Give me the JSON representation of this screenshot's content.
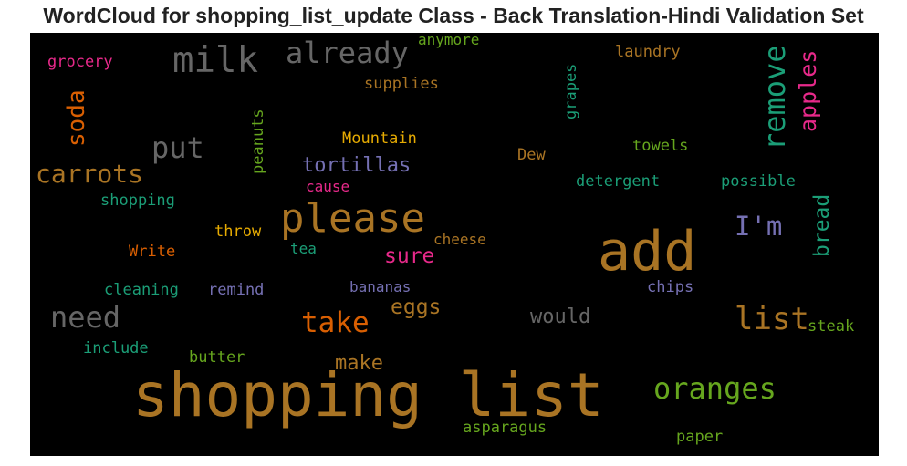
{
  "title": "WordCloud for shopping_list_update Class - Back Translation-Hindi Validation Set",
  "words": [
    {
      "text": "shopping list",
      "color": "#a97424"
    },
    {
      "text": "add",
      "color": "#a97424"
    },
    {
      "text": "please",
      "color": "#a97424"
    },
    {
      "text": "milk",
      "color": "#666666"
    },
    {
      "text": "already",
      "color": "#666666"
    },
    {
      "text": "oranges",
      "color": "#66a61e"
    },
    {
      "text": "list",
      "color": "#a97424"
    },
    {
      "text": "take",
      "color": "#d95f02"
    },
    {
      "text": "need",
      "color": "#666666"
    },
    {
      "text": "put",
      "color": "#666666"
    },
    {
      "text": "carrots",
      "color": "#a97424"
    },
    {
      "text": "remove",
      "color": "#1b9e77"
    },
    {
      "text": "apples",
      "color": "#e7298a"
    },
    {
      "text": "soda",
      "color": "#d95f02"
    },
    {
      "text": "I'm",
      "color": "#7570b3"
    },
    {
      "text": "tortillas",
      "color": "#7570b3"
    },
    {
      "text": "bread",
      "color": "#1b9e77"
    },
    {
      "text": "sure",
      "color": "#e7298a"
    },
    {
      "text": "eggs",
      "color": "#a97424"
    },
    {
      "text": "would",
      "color": "#666666"
    },
    {
      "text": "make",
      "color": "#a97424"
    },
    {
      "text": "grocery",
      "color": "#e7298a"
    },
    {
      "text": "anymore",
      "color": "#66a61e"
    },
    {
      "text": "laundry",
      "color": "#a97424"
    },
    {
      "text": "supplies",
      "color": "#a97424"
    },
    {
      "text": "grapes",
      "color": "#1b9e77"
    },
    {
      "text": "peanuts",
      "color": "#66a61e"
    },
    {
      "text": "Mountain",
      "color": "#e6ab02"
    },
    {
      "text": "Dew",
      "color": "#a97424"
    },
    {
      "text": "towels",
      "color": "#66a61e"
    },
    {
      "text": "detergent",
      "color": "#1b9e77"
    },
    {
      "text": "possible",
      "color": "#1b9e77"
    },
    {
      "text": "cause",
      "color": "#e7298a"
    },
    {
      "text": "shopping",
      "color": "#1b9e77"
    },
    {
      "text": "throw",
      "color": "#e6ab02"
    },
    {
      "text": "cheese",
      "color": "#a97424"
    },
    {
      "text": "tea",
      "color": "#1b9e77"
    },
    {
      "text": "Write",
      "color": "#d95f02"
    },
    {
      "text": "cleaning",
      "color": "#1b9e77"
    },
    {
      "text": "remind",
      "color": "#7570b3"
    },
    {
      "text": "bananas",
      "color": "#7570b3"
    },
    {
      "text": "chips",
      "color": "#7570b3"
    },
    {
      "text": "steak",
      "color": "#66a61e"
    },
    {
      "text": "include",
      "color": "#1b9e77"
    },
    {
      "text": "butter",
      "color": "#66a61e"
    },
    {
      "text": "asparagus",
      "color": "#66a61e"
    },
    {
      "text": "paper",
      "color": "#66a61e"
    }
  ]
}
